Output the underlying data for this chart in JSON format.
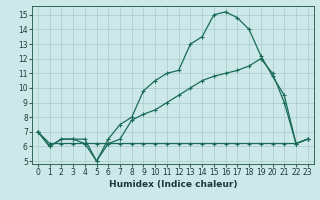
{
  "xlabel": "Humidex (Indice chaleur)",
  "bg_color": "#cce8e8",
  "line_color": "#1a6b5a",
  "grid_color": "#aacccc",
  "xlim": [
    -0.5,
    23.5
  ],
  "ylim": [
    4.8,
    15.6
  ],
  "yticks": [
    5,
    6,
    7,
    8,
    9,
    10,
    11,
    12,
    13,
    14,
    15
  ],
  "xticks": [
    0,
    1,
    2,
    3,
    4,
    5,
    6,
    7,
    8,
    9,
    10,
    11,
    12,
    13,
    14,
    15,
    16,
    17,
    18,
    19,
    20,
    21,
    22,
    23
  ],
  "line1_x": [
    0,
    1,
    2,
    3,
    4,
    5,
    6,
    7,
    8,
    9,
    10,
    11,
    12,
    13,
    14,
    15,
    16,
    17,
    18,
    19,
    20,
    21,
    22,
    23
  ],
  "line1_y": [
    7.0,
    6.0,
    6.5,
    6.5,
    6.5,
    5.0,
    6.5,
    7.5,
    8.0,
    9.8,
    10.5,
    11.0,
    11.2,
    13.0,
    13.5,
    15.0,
    15.2,
    14.8,
    14.0,
    12.2,
    10.8,
    9.5,
    6.2,
    6.5
  ],
  "line2_x": [
    0,
    1,
    2,
    3,
    4,
    5,
    6,
    7,
    8,
    9,
    10,
    11,
    12,
    13,
    14,
    15,
    16,
    17,
    18,
    19,
    20,
    21,
    22,
    23
  ],
  "line2_y": [
    7.0,
    6.0,
    6.5,
    6.5,
    6.2,
    5.0,
    6.2,
    6.5,
    7.8,
    8.2,
    8.5,
    9.0,
    9.5,
    10.0,
    10.5,
    10.8,
    11.0,
    11.2,
    11.5,
    12.0,
    11.0,
    9.0,
    6.2,
    6.5
  ],
  "line3_x": [
    0,
    1,
    2,
    3,
    4,
    5,
    6,
    7,
    8,
    9,
    10,
    11,
    12,
    13,
    14,
    15,
    16,
    17,
    18,
    19,
    20,
    21,
    22,
    23
  ],
  "line3_y": [
    7.0,
    6.2,
    6.2,
    6.2,
    6.2,
    6.2,
    6.2,
    6.2,
    6.2,
    6.2,
    6.2,
    6.2,
    6.2,
    6.2,
    6.2,
    6.2,
    6.2,
    6.2,
    6.2,
    6.2,
    6.2,
    6.2,
    6.2,
    6.5
  ]
}
